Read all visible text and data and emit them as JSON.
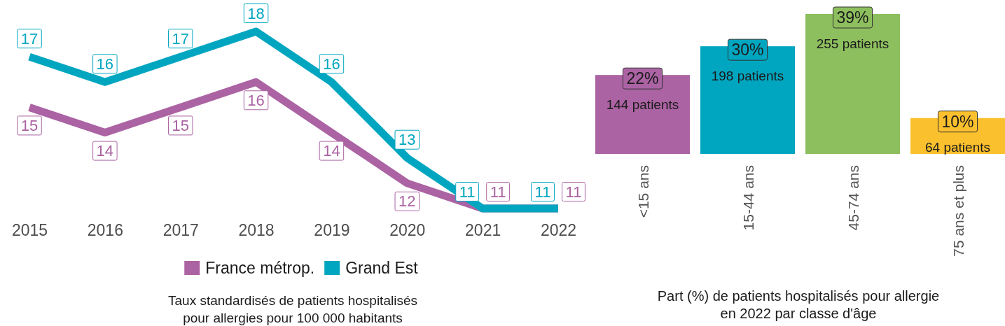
{
  "chart_data": [
    {
      "type": "line",
      "xlabel": "Taux standardisés de patients hospitalisés\npour allergies pour 100 000 habitants",
      "categories": [
        "2015",
        "2016",
        "2017",
        "2018",
        "2019",
        "2020",
        "2021",
        "2022"
      ],
      "tick_labels": "x",
      "data_labels": true,
      "legend": "bottom",
      "line_style": "solid",
      "marker": "none",
      "series": [
        {
          "name": "France métrop.",
          "color": "#ab63a3",
          "values": [
            15,
            14,
            15,
            16,
            14,
            12,
            11,
            11
          ]
        },
        {
          "name": "Grand Est",
          "color": "#00a6c0",
          "values": [
            17,
            16,
            17,
            18,
            16,
            13,
            11,
            11
          ]
        }
      ]
    },
    {
      "type": "bar",
      "xlabel": "Part (%) de patients hospitalisés pour allergie\nen 2022 par classe d'âge",
      "categories": [
        "<15 ans",
        "15-44 ans",
        "45-74 ans",
        "75 ans et plus"
      ],
      "values": [
        22,
        30,
        39,
        10
      ],
      "colors": [
        "#ab63a3",
        "#00a6c0",
        "#8ebf5f",
        "#fbc02d"
      ],
      "value_labels": [
        "22%",
        "30%",
        "39%",
        "10%"
      ],
      "ylim": [
        0,
        39
      ],
      "tick_labels": "x",
      "annotations": [
        {
          "text": "144 patients",
          "x": "<15 ans",
          "y": 22
        },
        {
          "text": "198 patients",
          "x": "15-44 ans",
          "y": 30
        },
        {
          "text": "255 patients",
          "x": "45-74 ans",
          "y": 39
        },
        {
          "text": "64 patients",
          "x": "75 ans et plus",
          "y": 10
        }
      ]
    }
  ]
}
